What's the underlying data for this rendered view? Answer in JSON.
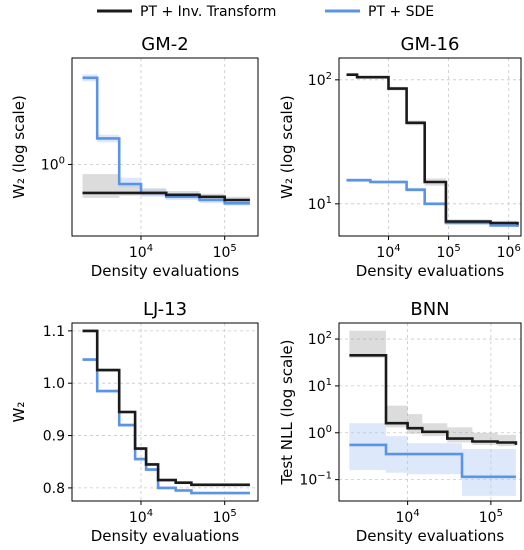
{
  "legend": [
    {
      "label": "PT + Inv. Transform",
      "color": "#1a1a1a"
    },
    {
      "label": "PT + SDE",
      "color": "#5b93e6"
    }
  ],
  "chart_data": [
    {
      "type": "line",
      "title": "GM-2",
      "xlabel": "Density evaluations",
      "ylabel": "W₂ (log scale)",
      "xscale": "log",
      "yscale": "log",
      "xlim": [
        1500,
        250000
      ],
      "ylim": [
        0.3,
        6
      ],
      "xticks": [
        {
          "value": 10000,
          "label": "10⁴"
        },
        {
          "value": 100000,
          "label": "10⁵"
        }
      ],
      "yticks": [
        {
          "value": 1,
          "label": "10⁰"
        }
      ],
      "grid": true,
      "series": [
        {
          "name": "PT + Inv. Transform",
          "color": "#1a1a1a",
          "x": [
            2000,
            3000,
            5500,
            10000,
            20000,
            50000,
            100000,
            200000
          ],
          "y": [
            0.62,
            0.62,
            0.62,
            0.62,
            0.6,
            0.58,
            0.55,
            0.55
          ],
          "band_low": [
            0.57,
            0.57,
            0.59,
            0.59,
            0.57,
            0.55,
            0.53,
            0.53
          ],
          "band_high": [
            0.85,
            0.85,
            0.73,
            0.67,
            0.64,
            0.61,
            0.58,
            0.58
          ]
        },
        {
          "name": "PT + SDE",
          "color": "#5b93e6",
          "x": [
            2000,
            3000,
            5500,
            10000,
            20000,
            50000,
            100000,
            200000
          ],
          "y": [
            4.3,
            1.55,
            0.72,
            0.62,
            0.58,
            0.55,
            0.52,
            0.52
          ],
          "band_low": [
            4.05,
            1.45,
            0.68,
            0.58,
            0.55,
            0.52,
            0.5,
            0.5
          ],
          "band_high": [
            4.55,
            1.65,
            0.8,
            0.66,
            0.61,
            0.58,
            0.55,
            0.55
          ]
        }
      ]
    },
    {
      "type": "line",
      "title": "GM-16",
      "xlabel": "Density evaluations",
      "ylabel": "W₂ (log scale)",
      "xscale": "log",
      "yscale": "log",
      "xlim": [
        1500,
        1600000
      ],
      "ylim": [
        5.5,
        150
      ],
      "xticks": [
        {
          "value": 10000,
          "label": "10⁴"
        },
        {
          "value": 100000,
          "label": "10⁵"
        },
        {
          "value": 1000000,
          "label": "10⁶"
        }
      ],
      "yticks": [
        {
          "value": 10,
          "label": "10¹"
        },
        {
          "value": 100,
          "label": "10²"
        }
      ],
      "grid": true,
      "series": [
        {
          "name": "PT + Inv. Transform",
          "color": "#1a1a1a",
          "x": [
            2000,
            3000,
            10000,
            20000,
            40000,
            90000,
            500000,
            1400000
          ],
          "y": [
            110,
            105,
            85,
            45,
            15,
            7.2,
            7.0,
            6.8
          ],
          "band_low": [
            107,
            102,
            82,
            43,
            14,
            7.0,
            6.8,
            6.6
          ],
          "band_high": [
            113,
            108,
            88,
            47,
            16,
            7.5,
            7.3,
            7.1
          ]
        },
        {
          "name": "PT + SDE",
          "color": "#5b93e6",
          "x": [
            2000,
            5000,
            20000,
            40000,
            90000,
            500000,
            1400000
          ],
          "y": [
            15.5,
            15.0,
            13.0,
            10.0,
            7.0,
            6.7,
            6.5
          ],
          "band_low": [
            15.0,
            14.5,
            12.5,
            9.7,
            6.8,
            6.5,
            6.3
          ],
          "band_high": [
            16.0,
            15.5,
            13.5,
            10.3,
            7.2,
            6.9,
            6.7
          ]
        }
      ]
    },
    {
      "type": "line",
      "title": "LJ-13",
      "xlabel": "Density evaluations",
      "ylabel": "W₂",
      "xscale": "log",
      "yscale": "linear",
      "xlim": [
        1500,
        250000
      ],
      "ylim": [
        0.775,
        1.115
      ],
      "xticks": [
        {
          "value": 10000,
          "label": "10⁴"
        },
        {
          "value": 100000,
          "label": "10⁵"
        }
      ],
      "yticks": [
        {
          "value": 0.8,
          "label": "0.8"
        },
        {
          "value": 0.9,
          "label": "0.9"
        },
        {
          "value": 1.0,
          "label": "1.0"
        },
        {
          "value": 1.1,
          "label": "1.1"
        }
      ],
      "grid": true,
      "series": [
        {
          "name": "PT + Inv. Transform",
          "color": "#1a1a1a",
          "x": [
            2000,
            3000,
            4000,
            5500,
            8500,
            11500,
            16000,
            26000,
            40000,
            200000
          ],
          "y": [
            1.1,
            1.025,
            1.025,
            0.945,
            0.875,
            0.845,
            0.815,
            0.81,
            0.806,
            0.806
          ],
          "band_low": [
            1.097,
            1.022,
            1.022,
            0.942,
            0.872,
            0.842,
            0.812,
            0.807,
            0.803,
            0.803
          ],
          "band_high": [
            1.103,
            1.028,
            1.028,
            0.948,
            0.878,
            0.848,
            0.818,
            0.813,
            0.809,
            0.809
          ]
        },
        {
          "name": "PT + SDE",
          "color": "#5b93e6",
          "x": [
            2000,
            3000,
            4000,
            5500,
            8500,
            11500,
            16000,
            26000,
            40000,
            200000
          ],
          "y": [
            1.045,
            0.985,
            0.985,
            0.92,
            0.855,
            0.835,
            0.8,
            0.795,
            0.79,
            0.79
          ],
          "band_low": [
            1.042,
            0.982,
            0.982,
            0.917,
            0.852,
            0.832,
            0.797,
            0.792,
            0.788,
            0.788
          ],
          "band_high": [
            1.048,
            0.988,
            0.988,
            0.923,
            0.858,
            0.838,
            0.803,
            0.798,
            0.793,
            0.793
          ]
        }
      ]
    },
    {
      "type": "line",
      "title": "BNN",
      "xlabel": "Density evaluations",
      "ylabel": "Test NLL (log scale)",
      "xscale": "log",
      "yscale": "log",
      "xlim": [
        1500,
        230000
      ],
      "ylim": [
        0.035,
        220
      ],
      "xticks": [
        {
          "value": 10000,
          "label": "10⁴"
        },
        {
          "value": 100000,
          "label": "10⁵"
        }
      ],
      "yticks": [
        {
          "value": 0.1,
          "label": "10⁻¹"
        },
        {
          "value": 1,
          "label": "10⁰"
        },
        {
          "value": 10,
          "label": "10¹"
        },
        {
          "value": 100,
          "label": "10²"
        }
      ],
      "grid": true,
      "series": [
        {
          "name": "PT + Inv. Transform",
          "color": "#1a1a1a",
          "x": [
            2000,
            5500,
            10000,
            15000,
            30000,
            60000,
            120000,
            200000
          ],
          "y": [
            45,
            1.6,
            1.25,
            1.05,
            0.75,
            0.65,
            0.62,
            0.55
          ],
          "band_low": [
            40,
            1.3,
            0.95,
            0.85,
            0.62,
            0.55,
            0.52,
            0.38
          ],
          "band_high": [
            150,
            3.8,
            2.5,
            1.6,
            1.3,
            1.0,
            0.9,
            0.82
          ]
        },
        {
          "name": "PT + SDE",
          "color": "#5b93e6",
          "x": [
            2000,
            5500,
            10000,
            45000,
            200000
          ],
          "y": [
            0.55,
            0.35,
            0.35,
            0.115,
            0.115
          ],
          "band_low": [
            0.16,
            0.14,
            0.13,
            0.045,
            0.045
          ],
          "band_high": [
            1.6,
            0.85,
            0.6,
            0.45,
            0.3
          ]
        }
      ]
    }
  ]
}
